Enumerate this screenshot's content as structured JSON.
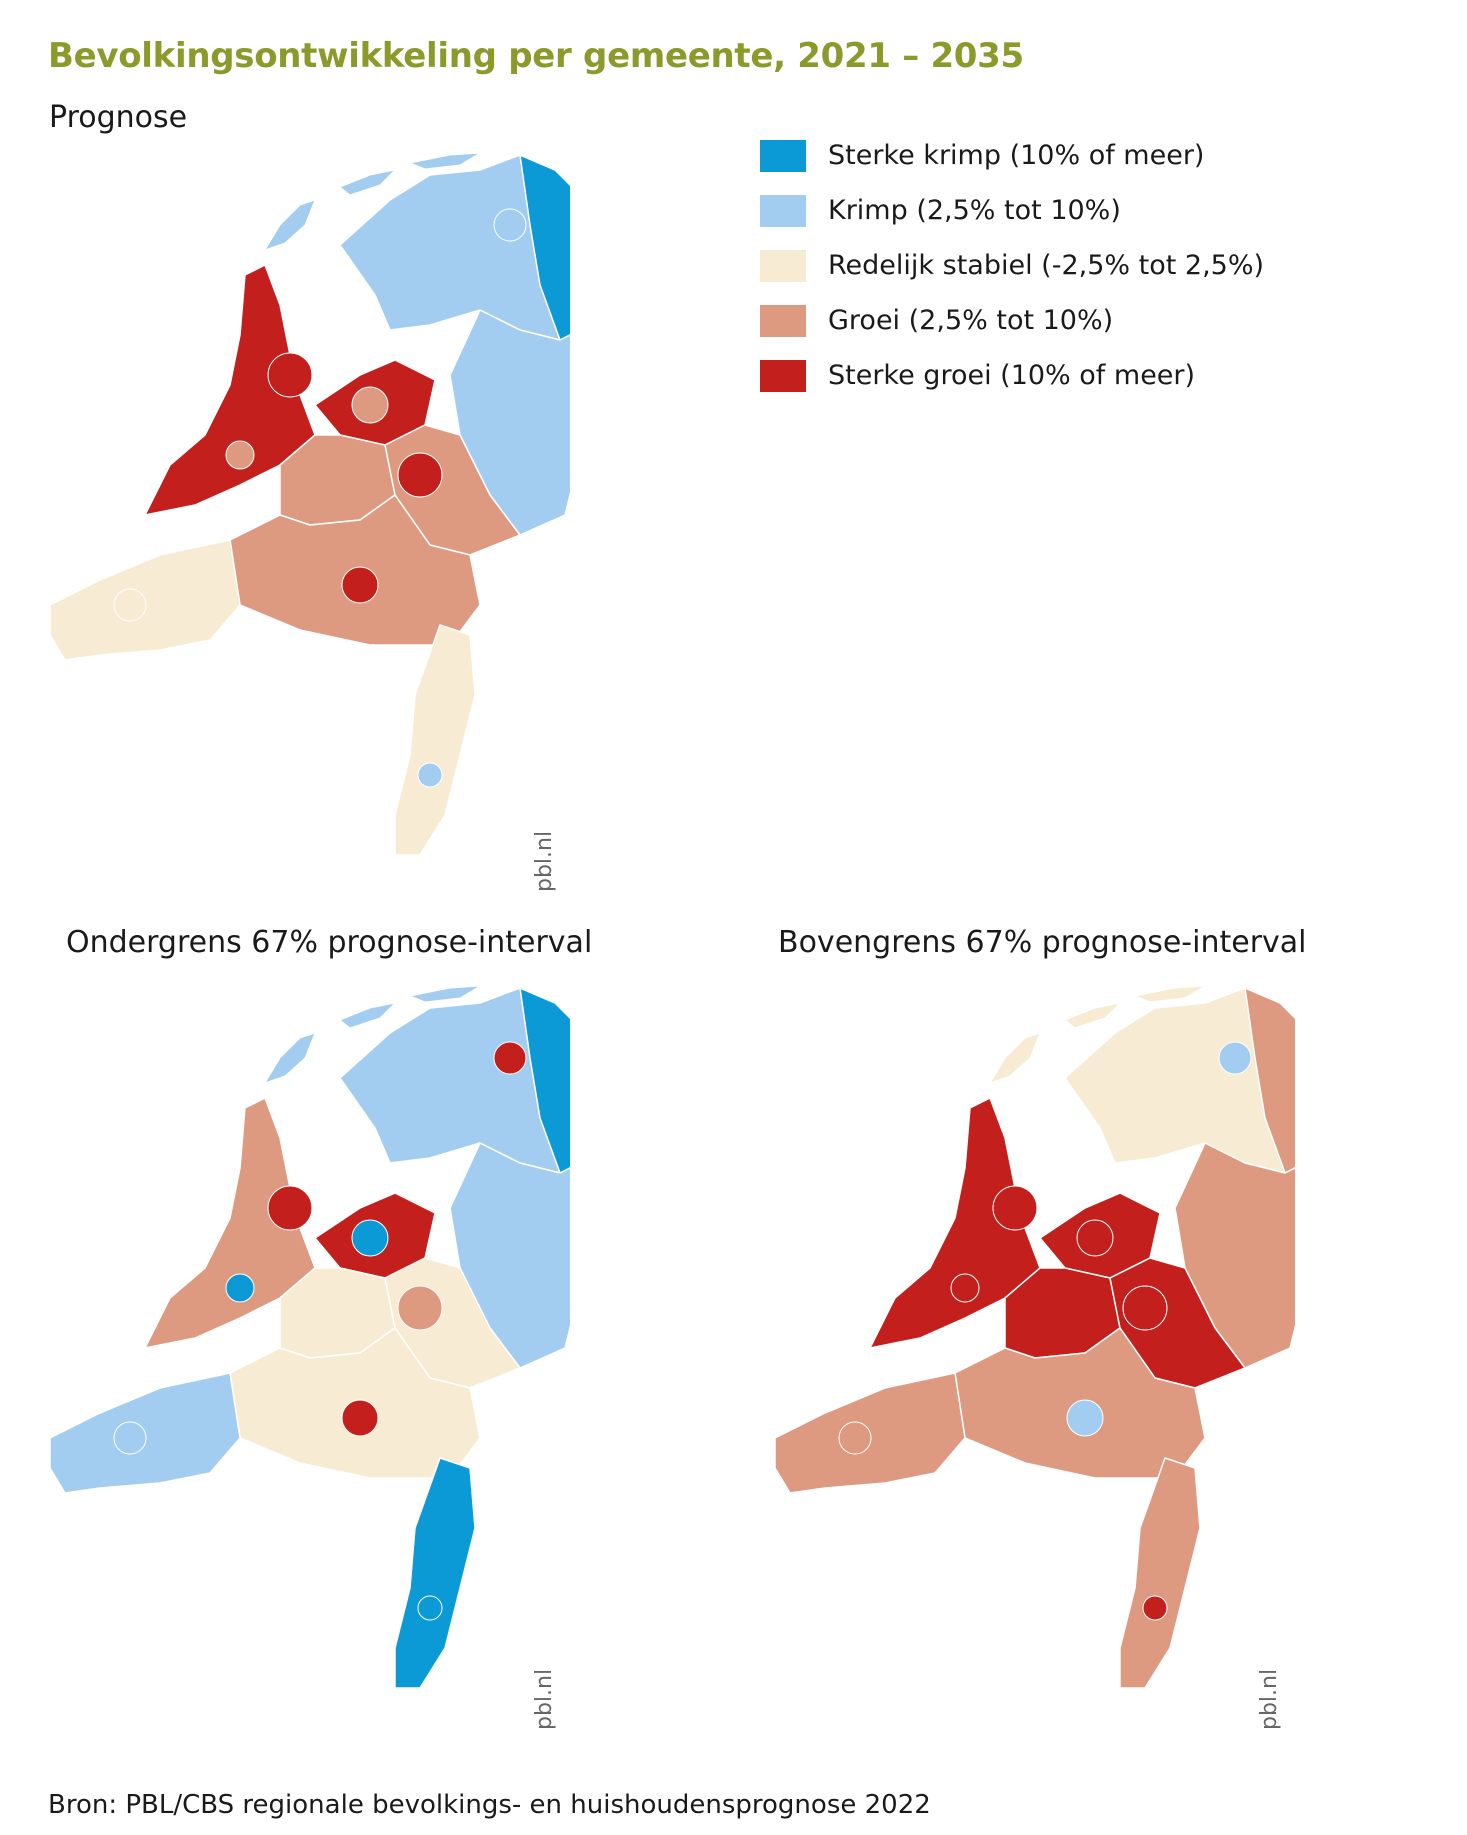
{
  "title": "Bevolkingsontwikkeling per gemeente, 2021 – 2035",
  "panels": {
    "prognose": "Prognose",
    "ondergrens": "Ondergrens 67% prognose-interval",
    "bovengrens": "Bovengrens 67% prognose-interval"
  },
  "legend": [
    {
      "label": "Sterke krimp (10% of meer)",
      "color": "#0b9ad6"
    },
    {
      "label": "Krimp (2,5% tot 10%)",
      "color": "#a3cdf0"
    },
    {
      "label": "Redelijk stabiel (-2,5% tot 2,5%)",
      "color": "#f8ebd3"
    },
    {
      "label": "Groei (2,5% tot 10%)",
      "color": "#de9a80"
    },
    {
      "label": "Sterke groei (10% of meer)",
      "color": "#c21f1d"
    }
  ],
  "credits": [
    "pbl.nl",
    "pbl.nl",
    "pbl.nl"
  ],
  "source": "Bron: PBL/CBS regionale bevolkings- en huishoudensprognose 2022",
  "map_regions": {
    "prognose": {
      "north": 1,
      "northeast": 0,
      "east": 1,
      "holland": 4,
      "flevo": 4,
      "utrecht": 3,
      "gelderland": 3,
      "brabant": 3,
      "zeeland": 2,
      "limburg": 2,
      "spots": [
        4,
        3,
        1,
        4,
        3,
        4,
        2,
        1
      ]
    },
    "ondergrens": {
      "north": 1,
      "northeast": 0,
      "east": 1,
      "holland": 3,
      "flevo": 4,
      "utrecht": 2,
      "gelderland": 2,
      "brabant": 2,
      "zeeland": 1,
      "limburg": 0,
      "spots": [
        4,
        0,
        4,
        3,
        0,
        4,
        1,
        0
      ]
    },
    "bovengrens": {
      "north": 2,
      "northeast": 3,
      "east": 3,
      "holland": 4,
      "flevo": 4,
      "utrecht": 4,
      "gelderland": 4,
      "brabant": 3,
      "zeeland": 3,
      "limburg": 3,
      "spots": [
        4,
        4,
        1,
        4,
        4,
        1,
        3,
        4
      ]
    }
  }
}
